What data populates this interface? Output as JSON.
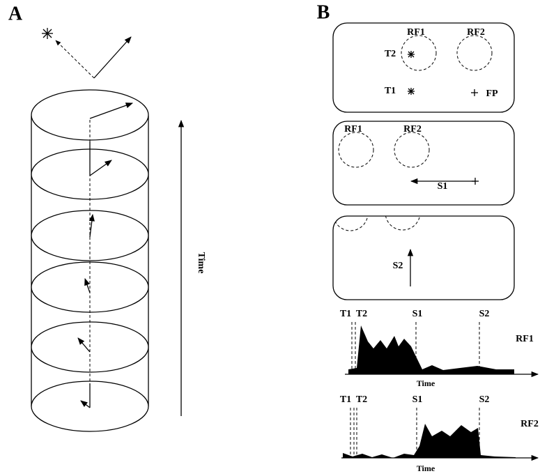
{
  "panel_a": {
    "label": "A",
    "axis_label": "Time"
  },
  "panel_b": {
    "label": "B",
    "frames": [
      {
        "rf_labels": [
          "RF1",
          "RF2"
        ],
        "targets": [
          "T2",
          "T1"
        ],
        "fixation": "FP"
      },
      {
        "rf_labels": [
          "RF1",
          "RF2"
        ],
        "saccade": "S1"
      },
      {
        "saccade": "S2"
      }
    ],
    "histograms": [
      {
        "events": [
          "T1",
          "T2",
          "S1",
          "S2"
        ],
        "label": "RF1",
        "axis_label": "Time"
      },
      {
        "events": [
          "T1",
          "T2",
          "S1",
          "S2"
        ],
        "label": "RF2",
        "axis_label": "Time"
      }
    ]
  }
}
